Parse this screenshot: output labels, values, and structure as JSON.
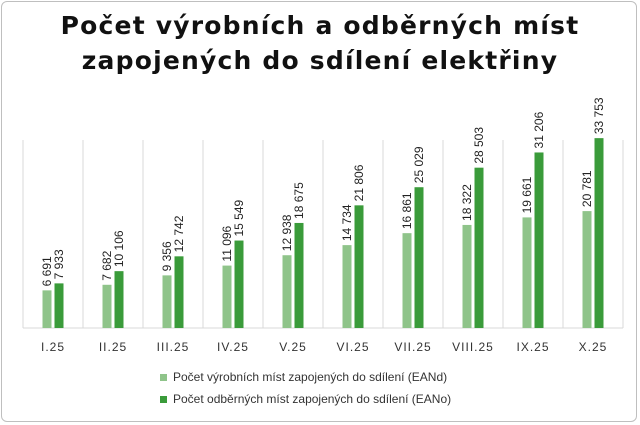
{
  "chart_data": {
    "type": "bar",
    "title": "Počet výrobních a odběrných míst zapojených do sdílení elektřiny",
    "categories": [
      "I.25",
      "II.25",
      "III.25",
      "IV.25",
      "V.25",
      "VI.25",
      "VII.25",
      "VIII.25",
      "IX.25",
      "X.25"
    ],
    "series": [
      {
        "name": "Počet výrobních míst zapojených do sdílení (EANd)",
        "color": "#8fc48a",
        "values": [
          6691,
          7682,
          9356,
          11096,
          12938,
          14734,
          16861,
          18322,
          19661,
          20781
        ],
        "labels": [
          "6 691",
          "7 682",
          "9 356",
          "11 096",
          "12 938",
          "14 734",
          "16 861",
          "18 322",
          "19 661",
          "20 781"
        ]
      },
      {
        "name": "Počet odběrných míst zapojených do sdílení (EANo)",
        "color": "#3a9b3a",
        "values": [
          7933,
          10106,
          12742,
          15549,
          18675,
          21806,
          25029,
          28503,
          31206,
          33753
        ],
        "labels": [
          "7 933",
          "10 106",
          "12 742",
          "15 549",
          "18 675",
          "21 806",
          "25 029",
          "28 503",
          "31 206",
          "33 753"
        ]
      }
    ],
    "ylim": [
      0,
      48000
    ],
    "grid": "vertical-separators",
    "legend": "bottom"
  }
}
